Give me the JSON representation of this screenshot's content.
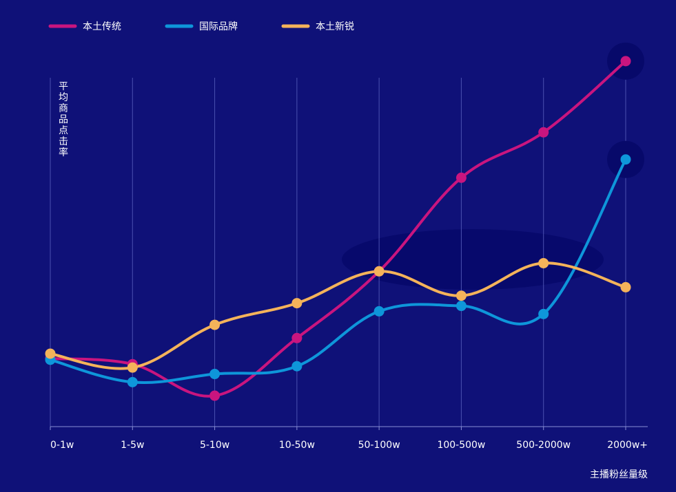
{
  "chart_data": {
    "type": "line",
    "title": "",
    "xlabel": "主播粉丝量级",
    "ylabel": "平均商品点击率",
    "categories": [
      "0-1w",
      "1-5w",
      "5-10w",
      "10-50w",
      "50-100w",
      "100-500w",
      "500-2000w",
      "2000w+"
    ],
    "ylim": [
      0,
      100
    ],
    "grid": "vertical",
    "legend_position": "top-left",
    "series": [
      {
        "name": "本土传统",
        "color": "#c9157f",
        "values": [
          19.8,
          18.1,
          8.8,
          25.8,
          45.5,
          73.1,
          86.5,
          107.5
        ]
      },
      {
        "name": "国际品牌",
        "color": "#0e96da",
        "values": [
          19.4,
          12.8,
          15.2,
          17.5,
          33.7,
          35.3,
          32.9,
          78.5
        ]
      },
      {
        "name": "本土新锐",
        "color": "#f4b35a",
        "values": [
          21.2,
          17.1,
          29.7,
          36.1,
          45.5,
          38.3,
          47.9,
          40.8
        ]
      }
    ],
    "highlight_points": [
      {
        "series": "本土传统",
        "category": "2000w+"
      },
      {
        "series": "国际品牌",
        "category": "2000w+"
      }
    ]
  }
}
